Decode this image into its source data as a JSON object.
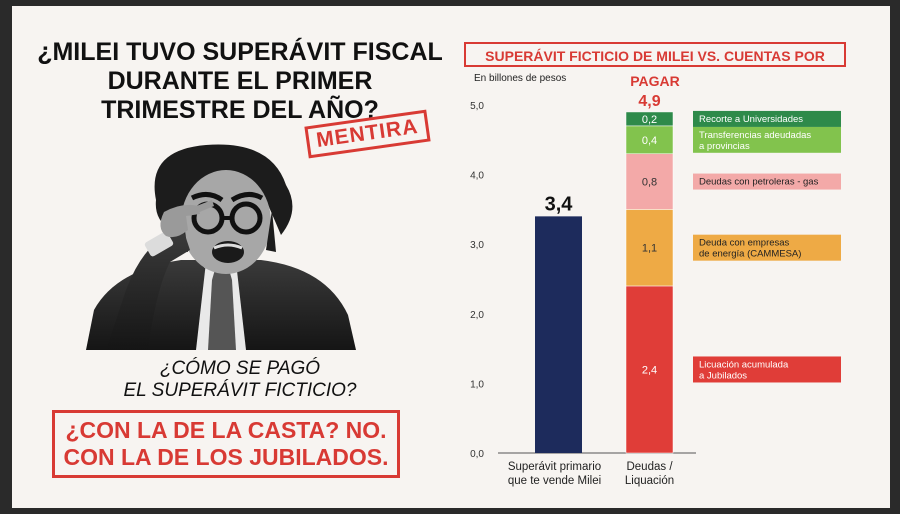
{
  "headline": {
    "lines": [
      "¿MILEI TUVO SUPERÁVIT FISCAL",
      "DURANTE EL PRIMER",
      "TRIMESTRE DEL AÑO?"
    ],
    "stamp": "MENTIRA"
  },
  "subquestion": {
    "lines": [
      "¿CÓMO SE PAGÓ",
      "EL SUPERÁVIT FICTICIO?"
    ]
  },
  "answer": {
    "lines": [
      "¿CON LA DE LA CASTA? NO.",
      "CON LA DE LOS JUBILADOS."
    ]
  },
  "colors": {
    "accent_red": "#d83a34",
    "navy": "#1d2b5c",
    "dark_green": "#2e8a4a",
    "light_green": "#82c34d",
    "pink": "#f3a9a8",
    "orange": "#eeaa45",
    "red": "#e03d38"
  },
  "chart_data": {
    "type": "bar",
    "title": "SUPERÁVIT FICTICIO DE MILEI VS. CUENTAS POR PAGAR",
    "ylabel": "En billones de pesos",
    "ylim": [
      0,
      5
    ],
    "yticks": [
      "0,0",
      "1,0",
      "2,0",
      "3,0",
      "4,0",
      "5,0"
    ],
    "grid": false,
    "categories": [
      {
        "lines": [
          "Superávit primario",
          "que te vende Milei"
        ]
      },
      {
        "lines": [
          "Deudas /",
          "Liquación"
        ]
      }
    ],
    "bar": {
      "value": 3.4,
      "label": "3,4",
      "color": "#1d2b5c"
    },
    "stacked": {
      "total": 4.9,
      "total_label": "4,9",
      "segments": [
        {
          "value": 2.4,
          "label": "2,4",
          "color": "#e03d38",
          "legend": [
            "Licuación acumulada",
            "a Jubilados"
          ]
        },
        {
          "value": 1.1,
          "label": "1,1",
          "color": "#eeaa45",
          "legend": [
            "Deuda con empresas",
            "de energía (CAMMESA)"
          ]
        },
        {
          "value": 0.8,
          "label": "0,8",
          "color": "#f3a9a8",
          "legend": [
            "Deudas con petroleras - gas"
          ]
        },
        {
          "value": 0.4,
          "label": "0,4",
          "color": "#82c34d",
          "legend": [
            "Transferencias adeudadas",
            "a provincias"
          ]
        },
        {
          "value": 0.2,
          "label": "0,2",
          "color": "#2e8a4a",
          "legend": [
            "Recorte a Universidades"
          ]
        }
      ]
    }
  }
}
